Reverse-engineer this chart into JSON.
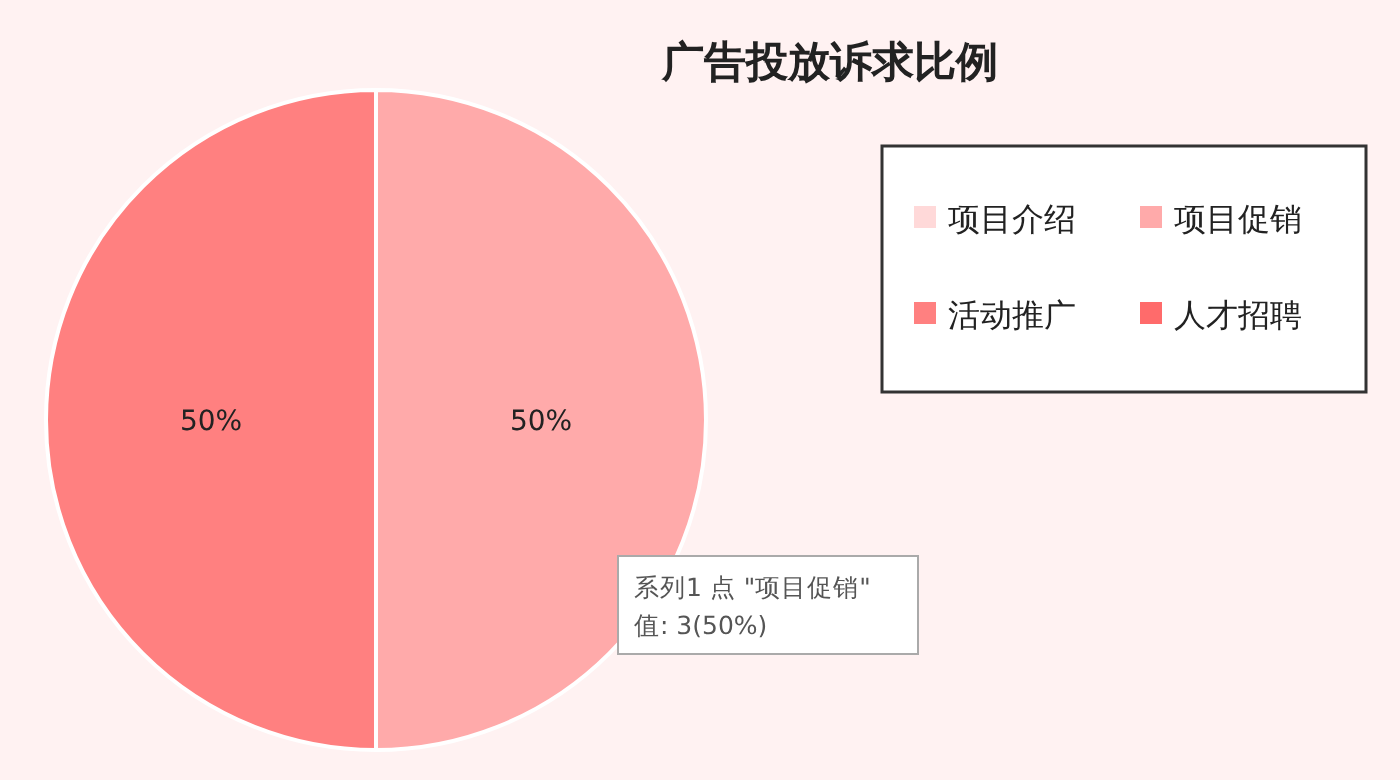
{
  "chart_data": {
    "type": "pie",
    "title": "广告投放诉求比例",
    "categories": [
      "项目介绍",
      "项目促销",
      "活动推广",
      "人才招聘"
    ],
    "values": [
      0,
      50,
      50,
      0
    ],
    "colors": [
      "#ffd9d9",
      "#ffaaaa",
      "#ff8080",
      "#ff6b6b"
    ],
    "value_labels": [
      null,
      "50%",
      "50%",
      null
    ],
    "legend": "right",
    "annotations": [
      "系列1 点 \"项目促销\"",
      "值: 3(50%)"
    ]
  }
}
